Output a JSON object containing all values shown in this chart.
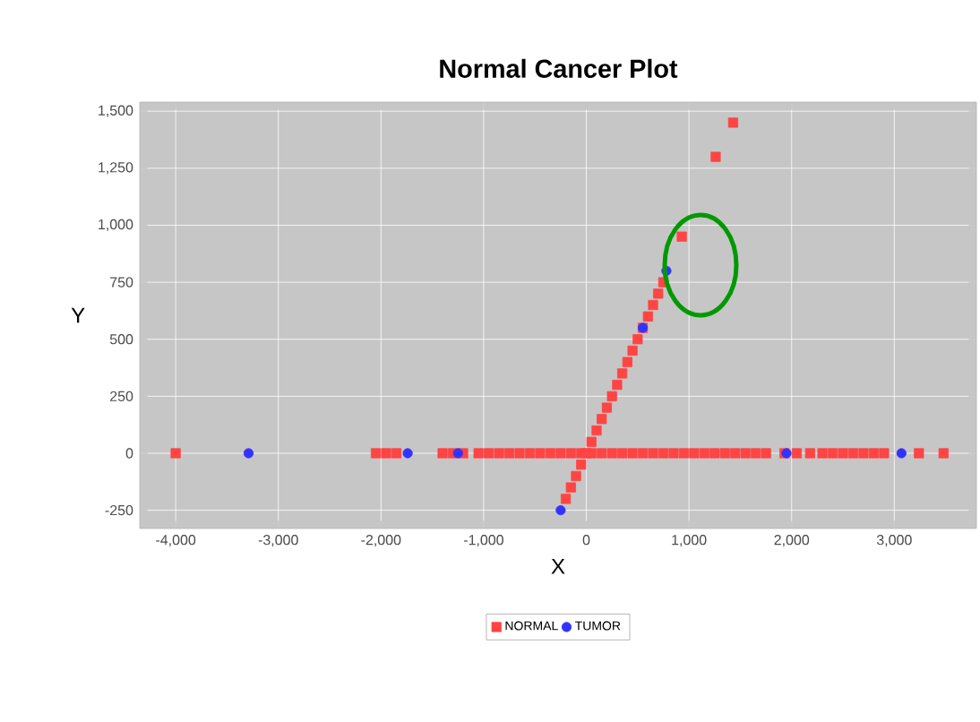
{
  "chart_data": {
    "type": "scatter",
    "title": "Normal Cancer Plot",
    "xlabel": "X",
    "ylabel": "Y",
    "xlim": [
      -4350,
      3800
    ],
    "ylim": [
      -330,
      1540
    ],
    "xticks": [
      {
        "value": -4000,
        "label": "-4,000"
      },
      {
        "value": -3000,
        "label": "-3,000"
      },
      {
        "value": -2000,
        "label": "-2,000"
      },
      {
        "value": -1000,
        "label": "-1,000"
      },
      0,
      {
        "value": 1000,
        "label": "1,000"
      },
      {
        "value": 2000,
        "label": "2,000"
      },
      {
        "value": 3000,
        "label": "3,000"
      }
    ],
    "yticks": [
      -250,
      0,
      250,
      500,
      750,
      {
        "value": 1000,
        "label": "1,000"
      },
      {
        "value": 1250,
        "label": "1,250"
      },
      {
        "value": 1500,
        "label": "1,500"
      }
    ],
    "grid": true,
    "legend": "bottom",
    "series": [
      {
        "name": "NORMAL",
        "color": "#ff4444",
        "marker": "square",
        "x": [
          -4000,
          -2050,
          -1950,
          -1850,
          -1400,
          -1300,
          -1200,
          -1050,
          -950,
          -850,
          -750,
          -650,
          -550,
          -450,
          -350,
          -250,
          -150,
          -50,
          50,
          150,
          250,
          350,
          450,
          550,
          650,
          750,
          850,
          950,
          1050,
          1150,
          1250,
          1350,
          1450,
          1550,
          1650,
          1750,
          1930,
          2050,
          2180,
          2300,
          2400,
          2500,
          2600,
          2700,
          2800,
          2900,
          3240,
          3480,
          -200,
          -150,
          -100,
          -50,
          0,
          50,
          100,
          150,
          200,
          250,
          300,
          350,
          400,
          450,
          500,
          550,
          600,
          650,
          700,
          750,
          930,
          1260,
          1430
        ],
        "values": [
          0,
          0,
          0,
          0,
          0,
          0,
          0,
          0,
          0,
          0,
          0,
          0,
          0,
          0,
          0,
          0,
          0,
          0,
          0,
          0,
          0,
          0,
          0,
          0,
          0,
          0,
          0,
          0,
          0,
          0,
          0,
          0,
          0,
          0,
          0,
          0,
          0,
          0,
          0,
          0,
          0,
          0,
          0,
          0,
          0,
          0,
          0,
          0,
          -200,
          -150,
          -100,
          -50,
          0,
          50,
          100,
          150,
          200,
          250,
          300,
          350,
          400,
          450,
          500,
          550,
          600,
          650,
          700,
          750,
          950,
          1300,
          1450
        ]
      },
      {
        "name": "TUMOR",
        "color": "#3333ff",
        "marker": "circle",
        "x": [
          -3290,
          -1740,
          -1250,
          -250,
          550,
          780,
          1950,
          3070
        ],
        "values": [
          0,
          0,
          0,
          -250,
          550,
          800,
          0,
          0
        ]
      }
    ]
  }
}
